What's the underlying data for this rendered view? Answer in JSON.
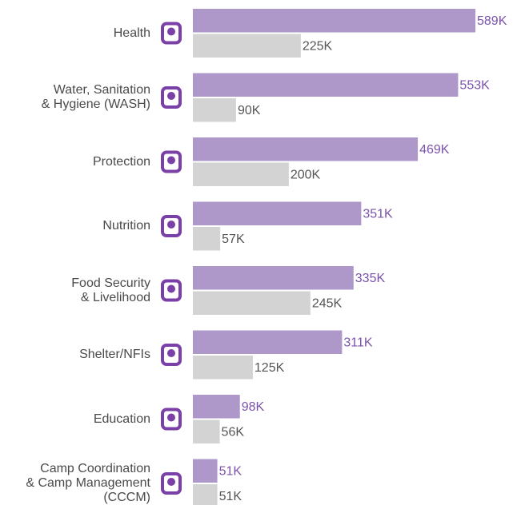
{
  "chart_data": {
    "type": "bar",
    "orientation": "horizontal",
    "categories": [
      "Health",
      "Water, Sanitation\n& Hygiene (WASH)",
      "Protection",
      "Nutrition",
      "Food Security\n& Livelihood",
      "Shelter/NFIs",
      "Education",
      "Camp Coordination\n& Camp Management\n(CCCM)"
    ],
    "series": [
      {
        "color": "#ae97c9",
        "label_color": "#7b52ab",
        "values": [
          589,
          553,
          469,
          351,
          335,
          311,
          98,
          51
        ],
        "value_labels": [
          "589K",
          "553K",
          "469K",
          "351K",
          "335K",
          "311K",
          "98K",
          "51K"
        ]
      },
      {
        "color": "#d3d3d3",
        "label_color": "#555555",
        "values": [
          225,
          90,
          200,
          57,
          245,
          125,
          56,
          51
        ],
        "value_labels": [
          "225K",
          "90K",
          "200K",
          "57K",
          "245K",
          "125K",
          "56K",
          "51K"
        ]
      }
    ],
    "icon_color": "#7b3fa8"
  }
}
